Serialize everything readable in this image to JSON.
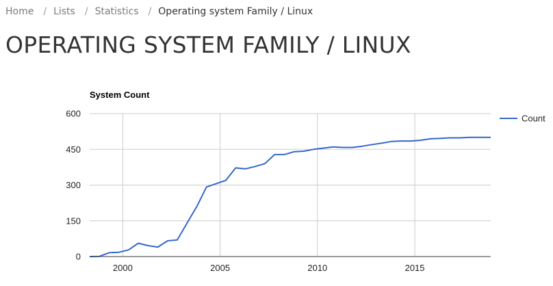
{
  "breadcrumb": {
    "items": [
      {
        "label": "Home"
      },
      {
        "label": "Lists"
      },
      {
        "label": "Statistics"
      }
    ],
    "separator": "/",
    "current": "Operating system Family / Linux"
  },
  "page_title": "OPERATING SYSTEM FAMILY / LINUX",
  "colors": {
    "series_line": "#3366cc",
    "grid": "#cccccc",
    "axis": "#333333"
  },
  "chart_data": {
    "type": "line",
    "title": "System Count",
    "xlabel": "",
    "ylabel": "",
    "xlim": [
      1998.3,
      2018.9
    ],
    "ylim": [
      0,
      600
    ],
    "x_ticks": [
      2000,
      2005,
      2010,
      2015
    ],
    "y_ticks": [
      0,
      150,
      300,
      450,
      600
    ],
    "grid": true,
    "legend_position": "right",
    "series": [
      {
        "name": "Count",
        "x": [
          1998.3,
          1998.8,
          1999.3,
          1999.8,
          2000.3,
          2000.8,
          2001.3,
          2001.8,
          2002.3,
          2002.8,
          2003.3,
          2003.8,
          2004.3,
          2004.8,
          2005.3,
          2005.8,
          2006.3,
          2006.8,
          2007.3,
          2007.8,
          2008.3,
          2008.8,
          2009.3,
          2009.8,
          2010.3,
          2010.8,
          2011.3,
          2011.8,
          2012.3,
          2012.8,
          2013.3,
          2013.8,
          2014.3,
          2014.8,
          2015.3,
          2015.8,
          2016.3,
          2016.8,
          2017.3,
          2017.8,
          2018.3,
          2018.9
        ],
        "values": [
          0,
          1,
          16,
          18,
          28,
          56,
          46,
          40,
          66,
          70,
          140,
          210,
          292,
          306,
          320,
          372,
          368,
          378,
          390,
          428,
          428,
          440,
          442,
          450,
          455,
          460,
          458,
          458,
          463,
          470,
          476,
          483,
          485,
          485,
          488,
          494,
          496,
          498,
          498,
          500,
          500,
          500
        ]
      }
    ]
  }
}
